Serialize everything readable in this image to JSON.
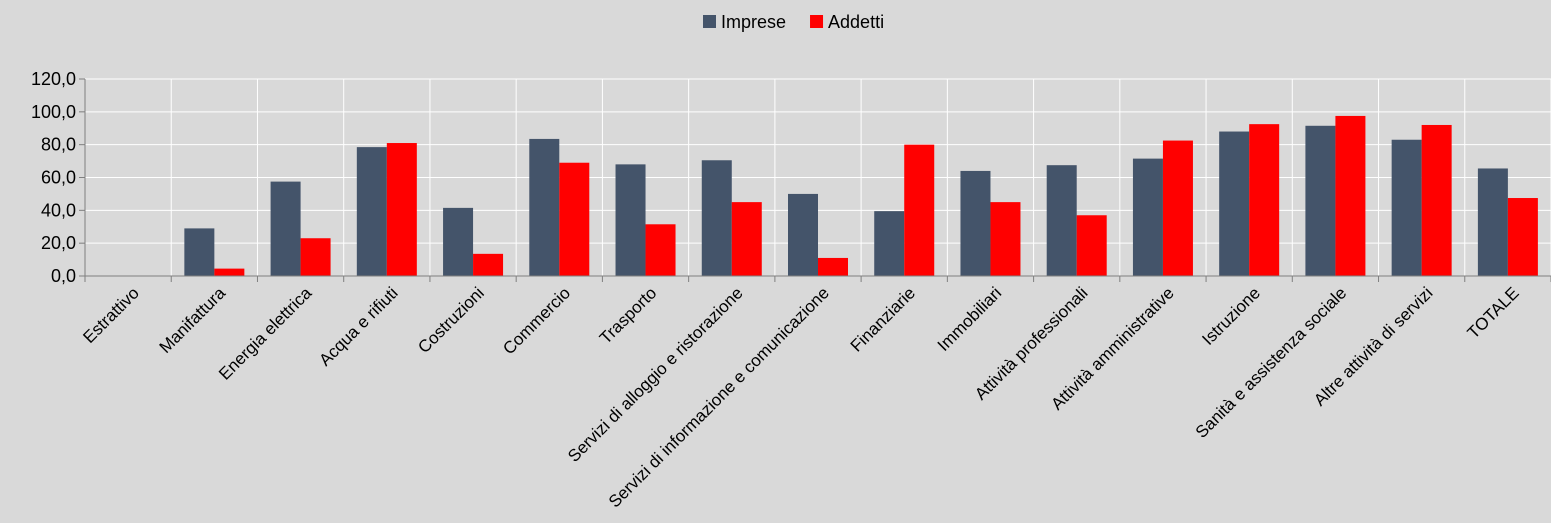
{
  "chart_data": {
    "type": "bar",
    "categories": [
      "Estrattivo",
      "Manifattura",
      "Energia elettrica",
      "Acqua e rifiuti",
      "Costruzioni",
      "Commercio",
      "Trasporto",
      "Servizi di alloggio e ristorazione",
      "Servizi di informazione e comunicazione",
      "Finanziarie",
      "Immobiliari",
      "Attività professionali",
      "Attività amministrative",
      "Istruzione",
      "Sanità e assistenza sociale",
      "Altre attività di servizi",
      "TOTALE"
    ],
    "series": [
      {
        "name": "Imprese",
        "color": "#44546a",
        "values": [
          0,
          29,
          57.5,
          78.5,
          41.5,
          83.5,
          68,
          70.5,
          50,
          39.5,
          64,
          67.5,
          71.5,
          88,
          91.5,
          83,
          65.5
        ]
      },
      {
        "name": "Addetti",
        "color": "#ff0000",
        "values": [
          0,
          4.5,
          23,
          81,
          13.5,
          69,
          31.5,
          45,
          11,
          80,
          45,
          37,
          82.5,
          92.5,
          97.5,
          92,
          47.5
        ]
      }
    ],
    "y_ticks": [
      "0,0",
      "20,0",
      "40,0",
      "60,0",
      "80,0",
      "100,0",
      "120,0"
    ],
    "ylim": [
      0,
      120
    ],
    "grid": true,
    "legend_position": "top-center",
    "title": "",
    "xlabel": "",
    "ylabel": ""
  }
}
